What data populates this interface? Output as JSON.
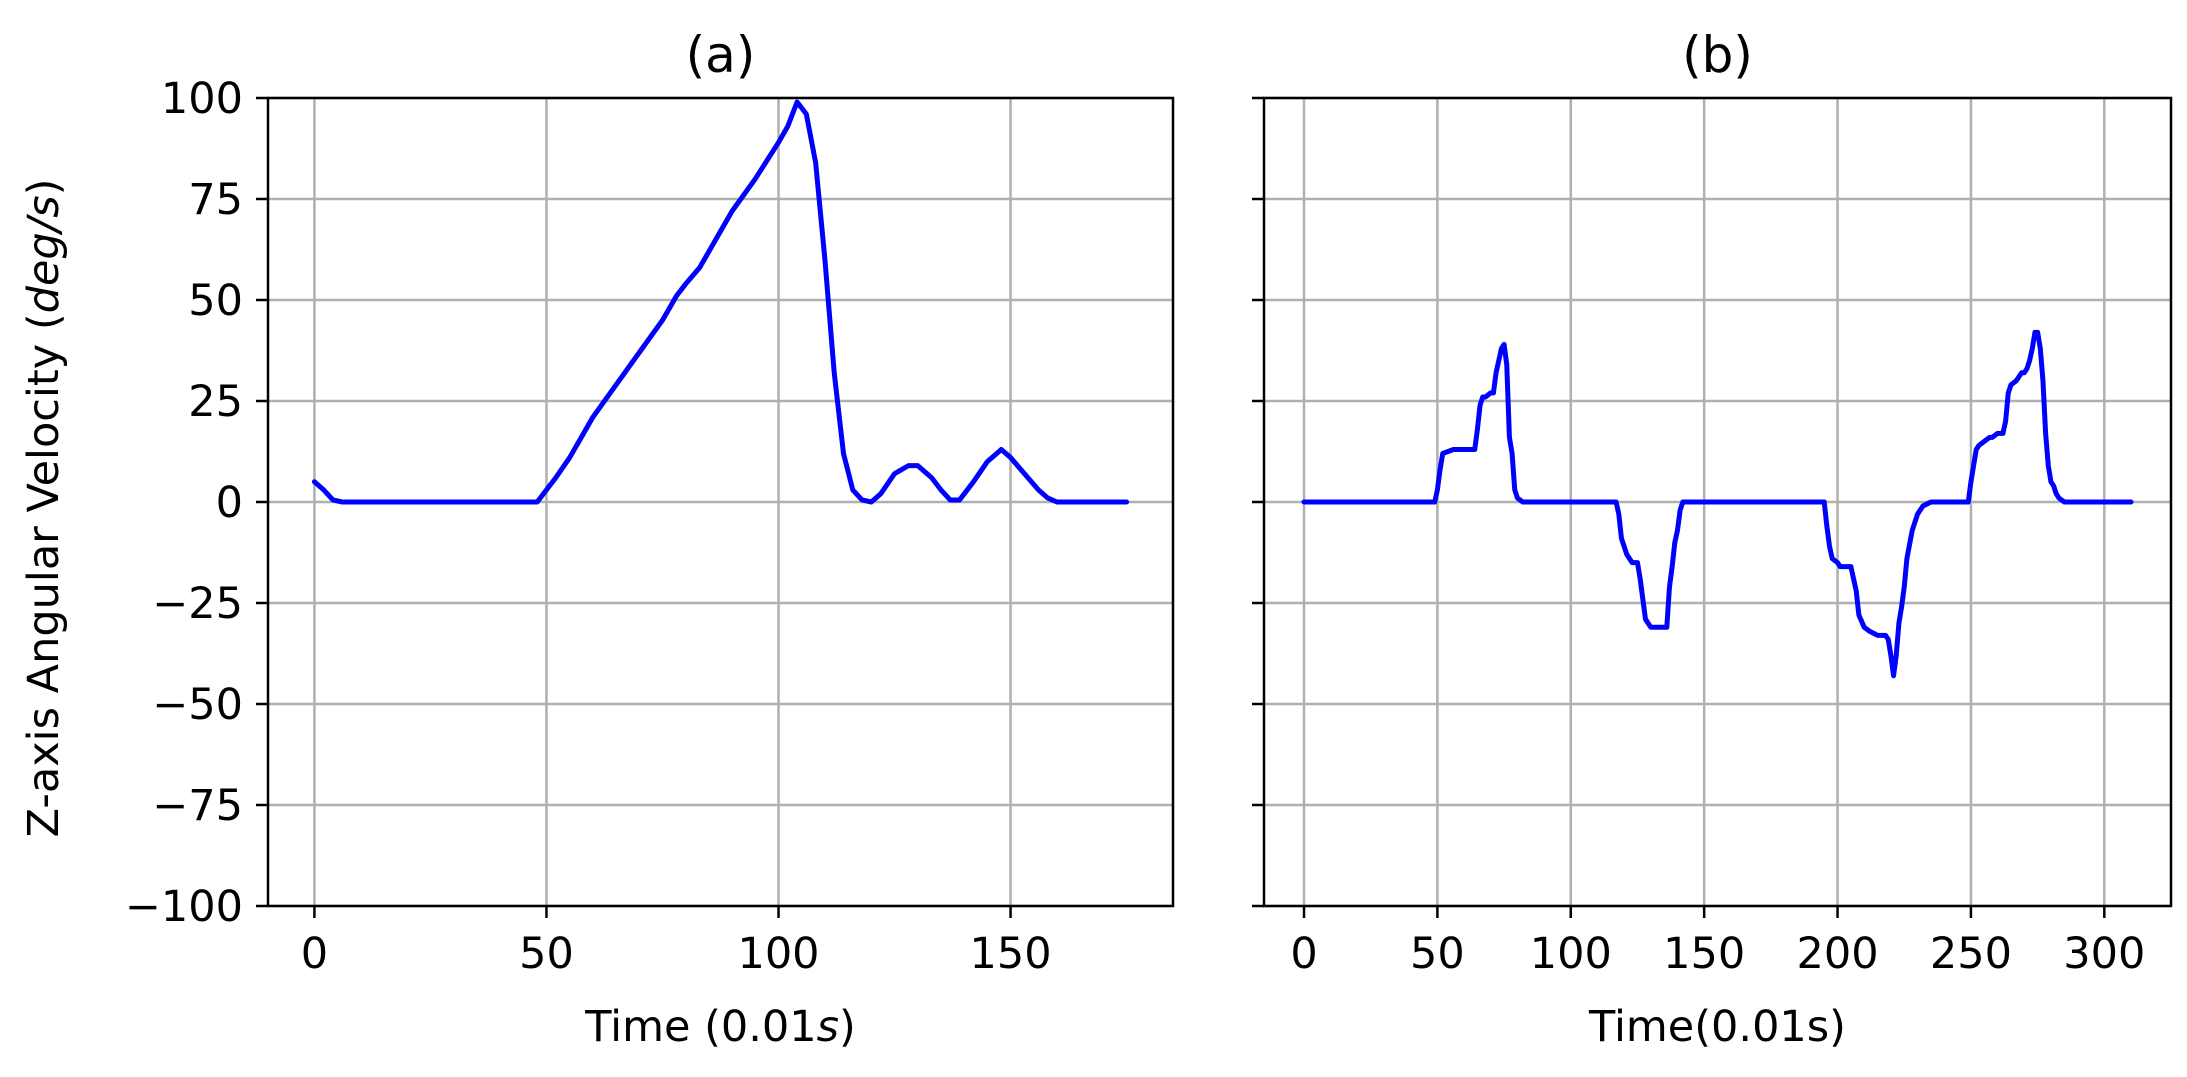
{
  "figure": {
    "ylabel_main": "Z-axis Angular Velocity (",
    "ylabel_unit": "deg/s",
    "ylabel_close": ")"
  },
  "chart_data": [
    {
      "type": "line",
      "title": "(a)",
      "xlabel_main": "Time (0.01",
      "xlabel_unit": "s",
      "xlabel_close": ")",
      "ylabel": "Z-axis Angular Velocity (deg/s)",
      "xlim": [
        -10,
        185
      ],
      "ylim": [
        -100,
        100
      ],
      "xticks": [
        0,
        50,
        100,
        150
      ],
      "xtick_labels": [
        "0",
        "50",
        "100",
        "150"
      ],
      "yticks": [
        100,
        75,
        50,
        25,
        0,
        -25,
        -50,
        -75,
        -100
      ],
      "ytick_labels": [
        "100",
        "75",
        "50",
        "25",
        "0",
        "−25",
        "−50",
        "−75",
        "−100"
      ],
      "grid": true,
      "series": [
        {
          "color": "#0000ff",
          "x": [
            0,
            2,
            4,
            6,
            48,
            50,
            52,
            55,
            58,
            60,
            65,
            70,
            75,
            78,
            80,
            83,
            85,
            88,
            90,
            95,
            100,
            102,
            104,
            106,
            108,
            110,
            112,
            114,
            116,
            118,
            120,
            122,
            125,
            128,
            130,
            133,
            135,
            137,
            139,
            142,
            145,
            148,
            150,
            153,
            156,
            158,
            160,
            175
          ],
          "y": [
            5,
            3,
            0.5,
            0,
            0,
            3,
            6,
            11,
            17,
            21,
            29,
            37,
            45,
            51,
            54,
            58,
            62,
            68,
            72,
            80,
            89,
            93,
            99,
            96,
            84,
            60,
            32,
            12,
            3,
            0.5,
            0,
            2,
            7,
            9,
            9,
            6,
            3,
            0.5,
            0.5,
            5,
            10,
            13,
            11,
            7,
            3,
            1,
            0,
            0
          ]
        }
      ]
    },
    {
      "type": "line",
      "title": "(b)",
      "xlabel": "Time(0.01s)",
      "xlim": [
        -15,
        325
      ],
      "ylim": [
        -100,
        100
      ],
      "xticks": [
        0,
        50,
        100,
        150,
        200,
        250,
        300
      ],
      "xtick_labels": [
        "0",
        "50",
        "100",
        "150",
        "200",
        "250",
        "300"
      ],
      "yticks": [
        100,
        75,
        50,
        25,
        0,
        -25,
        -50,
        -75,
        -100
      ],
      "grid": true,
      "series": [
        {
          "color": "#0000ff",
          "x": [
            0,
            49,
            50,
            51,
            52,
            56,
            57,
            58,
            59,
            60,
            64,
            65,
            66,
            67,
            68,
            70,
            71,
            72,
            73,
            74,
            75,
            76,
            77,
            78,
            79,
            80,
            82,
            117,
            118,
            119,
            120,
            121,
            122,
            123,
            124,
            125,
            126,
            127,
            128,
            129,
            130,
            131,
            132,
            133,
            134,
            135,
            136,
            137,
            138,
            139,
            140,
            141,
            142,
            145,
            195,
            196,
            197,
            198,
            200,
            201,
            202,
            203,
            204,
            205,
            206,
            207,
            208,
            210,
            212,
            215,
            218,
            219,
            220,
            221,
            222,
            223,
            224,
            225,
            226,
            228,
            230,
            232,
            235,
            248,
            249,
            250,
            251,
            252,
            253,
            255,
            257,
            258,
            260,
            262,
            263,
            264,
            265,
            267,
            268,
            269,
            270,
            271,
            272,
            273,
            274,
            275,
            276,
            277,
            278,
            279,
            280,
            281,
            282,
            283,
            285,
            287,
            310
          ],
          "y": [
            0,
            0,
            3,
            8,
            12,
            13,
            13,
            13,
            13,
            13,
            13,
            18,
            24,
            26,
            26,
            27,
            27,
            32,
            35,
            38,
            39,
            34,
            16,
            12,
            3,
            1,
            0,
            0,
            -3,
            -9,
            -11,
            -13,
            -14,
            -15,
            -15,
            -15,
            -19,
            -24,
            -29,
            -30,
            -31,
            -31,
            -31,
            -31,
            -31,
            -31,
            -31,
            -21,
            -16,
            -10,
            -7,
            -2,
            0,
            0,
            0,
            -6,
            -11,
            -14,
            -15,
            -16,
            -16,
            -16,
            -16,
            -16,
            -19,
            -22,
            -28,
            -31,
            -32,
            -33,
            -33,
            -34,
            -38,
            -43,
            -38,
            -30,
            -26,
            -21,
            -14,
            -7,
            -3,
            -1,
            0,
            0,
            0,
            5,
            9,
            13,
            14,
            15,
            16,
            16,
            17,
            17,
            20,
            27,
            29,
            30,
            31,
            32,
            32,
            33,
            35,
            38,
            42,
            42,
            38,
            30,
            17,
            9,
            5,
            4,
            2,
            1,
            0,
            0,
            0
          ]
        }
      ]
    }
  ]
}
